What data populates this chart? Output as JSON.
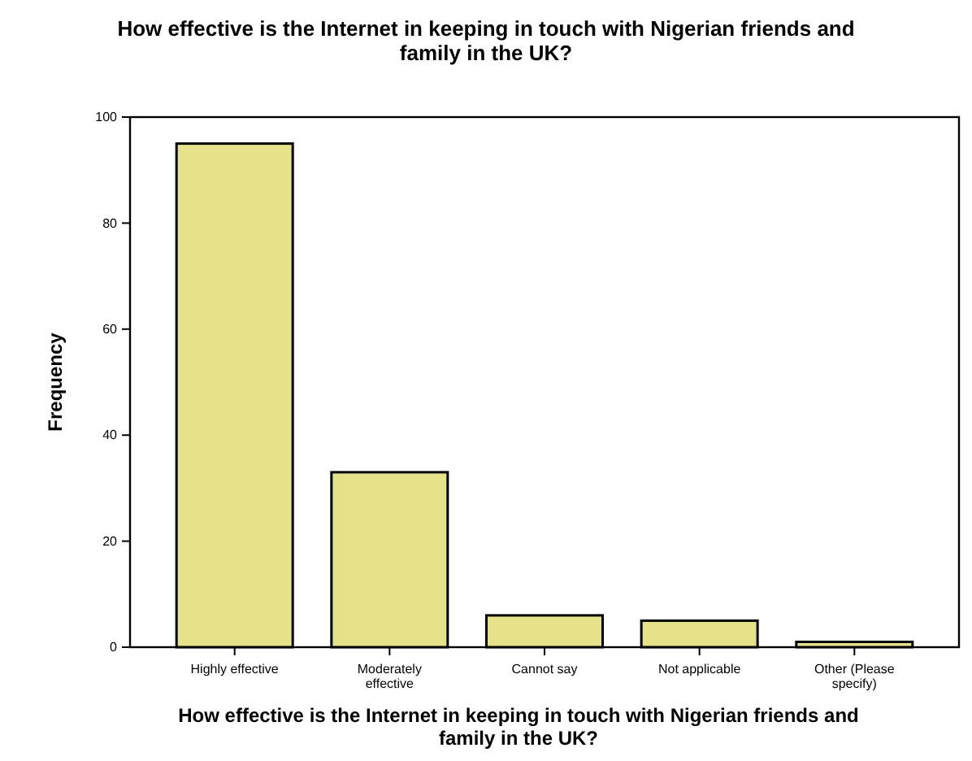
{
  "chart_data": {
    "type": "bar",
    "title": "How effective is the Internet in keeping in touch with Nigerian friends and family in the UK?",
    "xlabel": "How effective is the Internet in keeping in touch with Nigerian friends and family in the UK?",
    "ylabel": "Frequency",
    "categories": [
      "Highly effective",
      "Moderately effective",
      "Cannot say",
      "Not applicable",
      "Other (Please specify)"
    ],
    "values": [
      95,
      33,
      6,
      5,
      1
    ],
    "color": "#e6e28a",
    "ylim": [
      0,
      100
    ],
    "yticks": [
      0,
      20,
      40,
      60,
      80,
      100
    ],
    "grid": false
  }
}
